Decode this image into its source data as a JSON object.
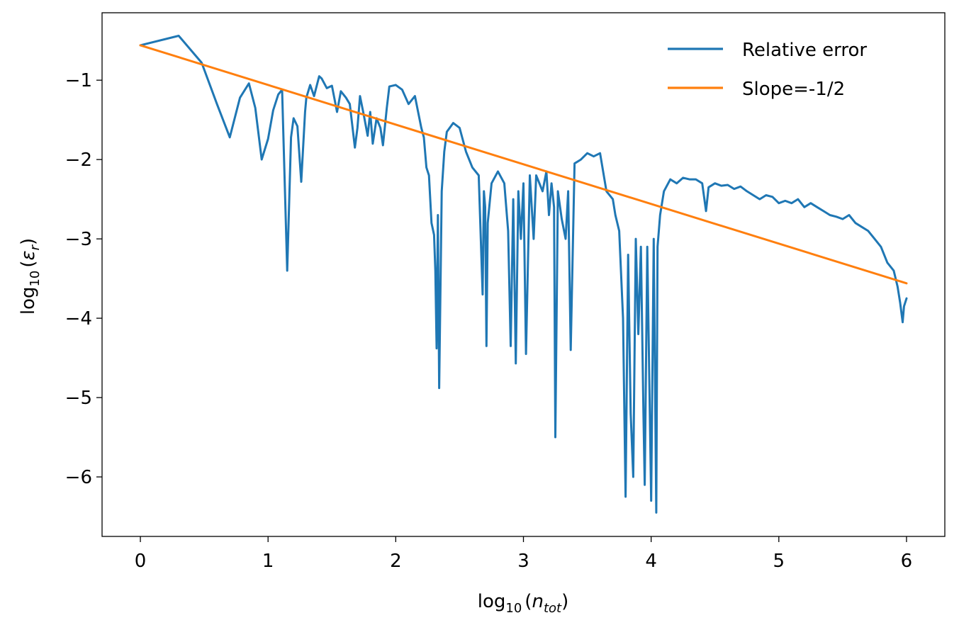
{
  "chart_data": {
    "type": "line",
    "xlabel": {
      "base": "log",
      "sub": "10",
      "arg": "n",
      "argsub": "tot"
    },
    "ylabel": {
      "base": "log",
      "sub": "10",
      "arg": "ε",
      "argsub": "r"
    },
    "xlim": [
      -0.3,
      6.3
    ],
    "ylim": [
      -6.75,
      -0.15
    ],
    "x_ticks": [
      0,
      1,
      2,
      3,
      4,
      5,
      6
    ],
    "x_tick_labels": [
      "0",
      "1",
      "2",
      "3",
      "4",
      "5",
      "6"
    ],
    "y_ticks": [
      -1,
      -2,
      -3,
      -4,
      -5,
      -6
    ],
    "y_tick_labels": [
      "−1",
      "−2",
      "−3",
      "−4",
      "−5",
      "−6"
    ],
    "legend_position": "top-right",
    "series": [
      {
        "name": "Relative error",
        "color": "#1f77b4",
        "x": [
          0,
          0.3,
          0.48,
          0.6,
          0.7,
          0.78,
          0.85,
          0.9,
          0.95,
          1.0,
          1.04,
          1.08,
          1.11,
          1.15,
          1.18,
          1.2,
          1.23,
          1.26,
          1.29,
          1.3,
          1.33,
          1.36,
          1.4,
          1.42,
          1.46,
          1.5,
          1.54,
          1.57,
          1.61,
          1.64,
          1.68,
          1.7,
          1.72,
          1.75,
          1.78,
          1.8,
          1.82,
          1.85,
          1.88,
          1.9,
          1.93,
          1.95,
          2.0,
          2.05,
          2.1,
          2.15,
          2.2,
          2.22,
          2.24,
          2.26,
          2.28,
          2.3,
          2.31,
          2.32,
          2.33,
          2.34,
          2.36,
          2.38,
          2.4,
          2.45,
          2.5,
          2.55,
          2.6,
          2.65,
          2.68,
          2.69,
          2.7,
          2.71,
          2.72,
          2.75,
          2.8,
          2.85,
          2.88,
          2.9,
          2.92,
          2.94,
          2.96,
          2.98,
          3.0,
          3.02,
          3.05,
          3.08,
          3.1,
          3.15,
          3.18,
          3.2,
          3.22,
          3.24,
          3.25,
          3.27,
          3.3,
          3.33,
          3.35,
          3.37,
          3.4,
          3.45,
          3.5,
          3.55,
          3.6,
          3.65,
          3.7,
          3.72,
          3.75,
          3.78,
          3.8,
          3.82,
          3.84,
          3.86,
          3.88,
          3.9,
          3.92,
          3.94,
          3.95,
          3.97,
          4.0,
          4.02,
          4.04,
          4.05,
          4.07,
          4.1,
          4.15,
          4.2,
          4.25,
          4.3,
          4.35,
          4.4,
          4.43,
          4.45,
          4.5,
          4.55,
          4.6,
          4.65,
          4.7,
          4.75,
          4.8,
          4.85,
          4.9,
          4.95,
          5.0,
          5.05,
          5.1,
          5.15,
          5.2,
          5.25,
          5.3,
          5.35,
          5.4,
          5.45,
          5.5,
          5.55,
          5.6,
          5.65,
          5.7,
          5.75,
          5.8,
          5.85,
          5.9,
          5.93,
          5.95,
          5.97,
          5.98,
          6.0
        ],
        "y": [
          -0.56,
          -0.44,
          -0.78,
          -1.3,
          -1.72,
          -1.22,
          -1.04,
          -1.35,
          -2.0,
          -1.74,
          -1.38,
          -1.18,
          -1.12,
          -3.4,
          -1.72,
          -1.48,
          -1.58,
          -2.28,
          -1.4,
          -1.22,
          -1.06,
          -1.2,
          -0.95,
          -0.98,
          -1.1,
          -1.07,
          -1.4,
          -1.14,
          -1.22,
          -1.3,
          -1.85,
          -1.6,
          -1.2,
          -1.44,
          -1.7,
          -1.4,
          -1.8,
          -1.48,
          -1.6,
          -1.82,
          -1.35,
          -1.08,
          -1.06,
          -1.12,
          -1.3,
          -1.2,
          -1.6,
          -1.72,
          -2.1,
          -2.2,
          -2.8,
          -2.95,
          -3.4,
          -4.38,
          -2.7,
          -4.88,
          -2.4,
          -1.9,
          -1.65,
          -1.54,
          -1.6,
          -1.9,
          -2.1,
          -2.2,
          -3.7,
          -2.4,
          -2.6,
          -4.35,
          -2.8,
          -2.3,
          -2.15,
          -2.3,
          -2.9,
          -4.35,
          -2.5,
          -4.57,
          -2.4,
          -3.0,
          -2.3,
          -4.45,
          -2.2,
          -3.0,
          -2.2,
          -2.4,
          -2.15,
          -2.7,
          -2.3,
          -2.6,
          -5.5,
          -2.4,
          -2.75,
          -3.0,
          -2.4,
          -4.4,
          -2.05,
          -2.0,
          -1.92,
          -1.96,
          -1.92,
          -2.4,
          -2.5,
          -2.7,
          -2.9,
          -4.0,
          -6.25,
          -3.2,
          -5.2,
          -6.0,
          -3.0,
          -4.2,
          -3.1,
          -5.2,
          -6.1,
          -3.1,
          -6.3,
          -3.0,
          -6.45,
          -3.1,
          -2.7,
          -2.4,
          -2.25,
          -2.3,
          -2.23,
          -2.25,
          -2.25,
          -2.3,
          -2.65,
          -2.35,
          -2.3,
          -2.33,
          -2.32,
          -2.37,
          -2.34,
          -2.4,
          -2.45,
          -2.5,
          -2.45,
          -2.47,
          -2.55,
          -2.52,
          -2.55,
          -2.5,
          -2.6,
          -2.55,
          -2.6,
          -2.65,
          -2.7,
          -2.72,
          -2.75,
          -2.7,
          -2.8,
          -2.85,
          -2.9,
          -3.0,
          -3.1,
          -3.3,
          -3.4,
          -3.6,
          -3.8,
          -4.05,
          -3.85,
          -3.75
        ]
      },
      {
        "name": "Slope=-1/2",
        "color": "#ff7f0e",
        "x": [
          0,
          6
        ],
        "y": [
          -0.56,
          -3.56
        ]
      }
    ]
  }
}
